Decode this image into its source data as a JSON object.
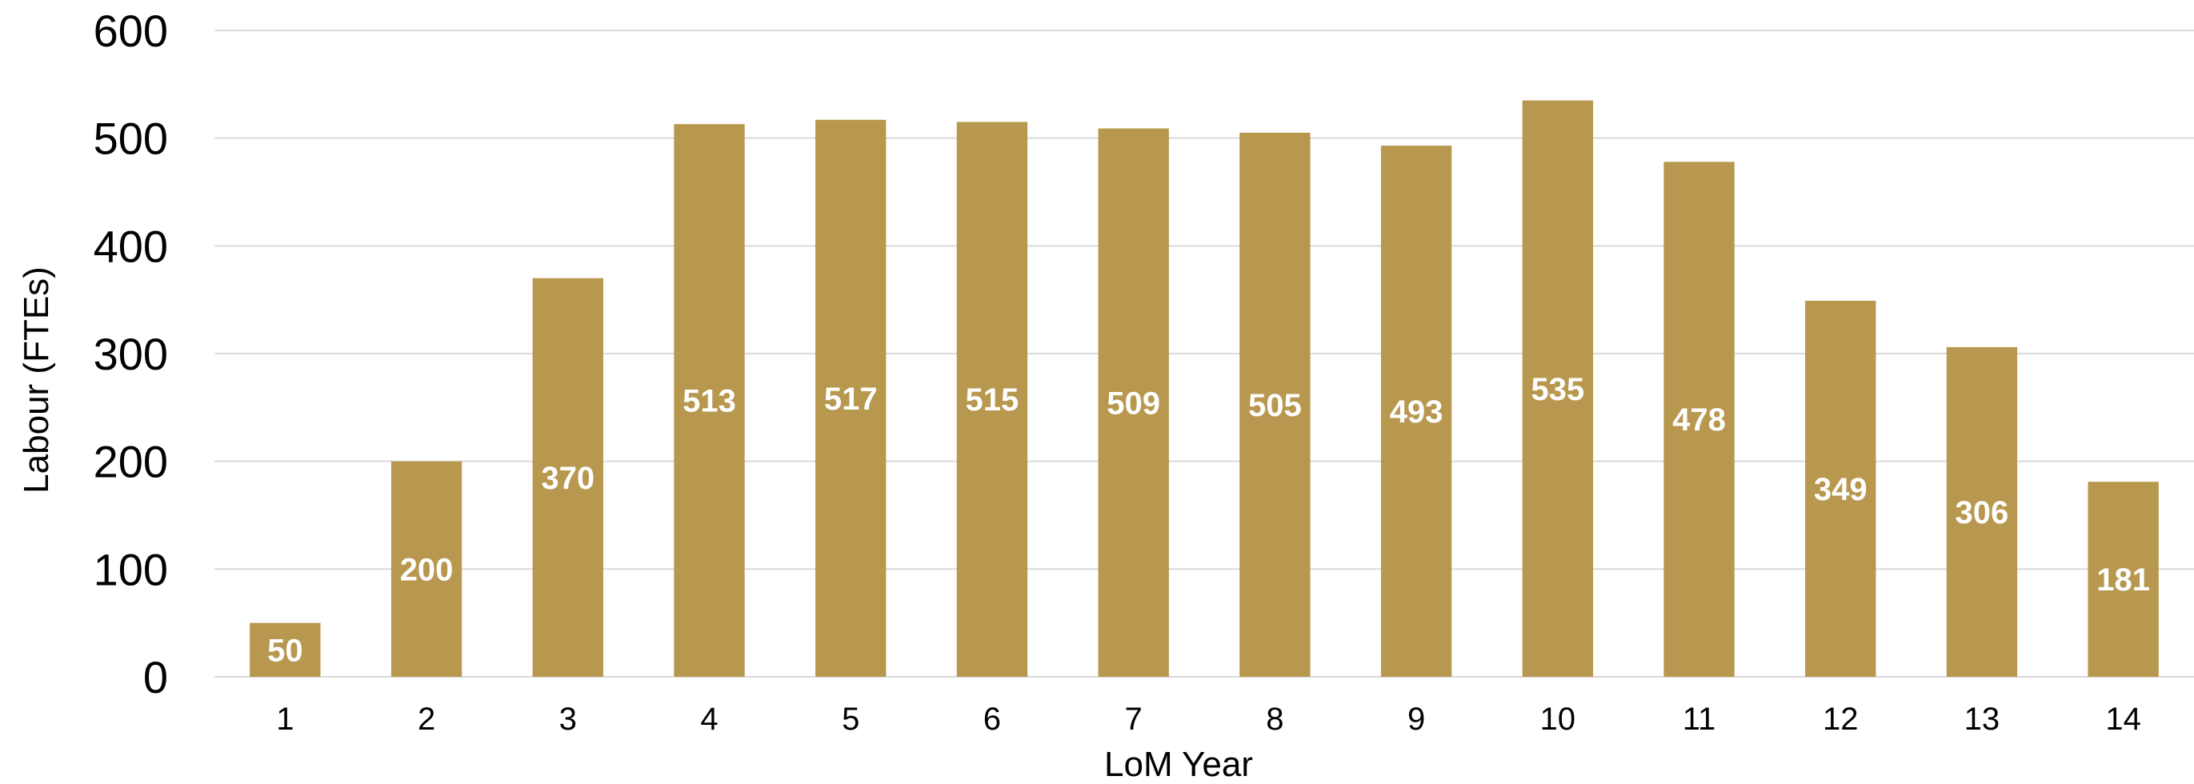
{
  "chart_data": {
    "type": "bar",
    "categories": [
      "1",
      "2",
      "3",
      "4",
      "5",
      "6",
      "7",
      "8",
      "9",
      "10",
      "11",
      "12",
      "13",
      "14"
    ],
    "values": [
      50,
      200,
      370,
      513,
      517,
      515,
      509,
      505,
      493,
      535,
      478,
      349,
      306,
      181
    ],
    "data_labels": [
      "50",
      "200",
      "370",
      "513",
      "517",
      "515",
      "509",
      "505",
      "493",
      "535",
      "478",
      "349",
      "306",
      "181"
    ],
    "xlabel": "LoM Year",
    "ylabel": "Labour (FTEs)",
    "ylim": [
      0,
      600
    ],
    "yticks": [
      "0",
      "100",
      "200",
      "300",
      "400",
      "500",
      "600"
    ],
    "grid": true,
    "colors": {
      "bar": "#b8974e",
      "label": "#ffffff",
      "grid": "#d9d9d9"
    }
  }
}
